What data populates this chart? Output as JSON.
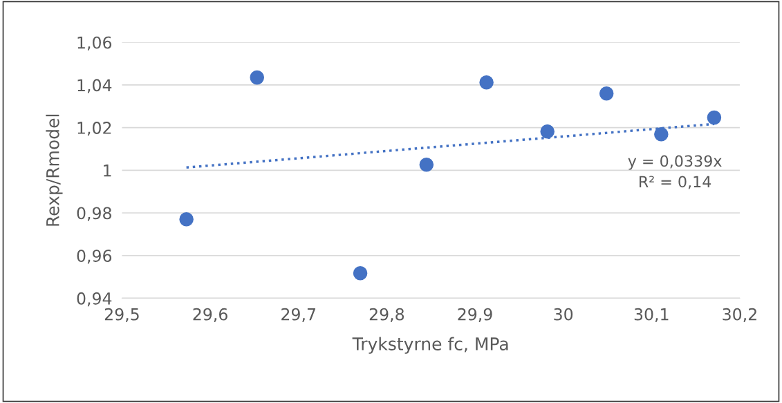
{
  "chart_data": {
    "type": "scatter",
    "xlabel": "Trykstyrne fc, MPa",
    "ylabel": "Rexp/Rmodel",
    "series": [
      {
        "color": "#4472c4",
        "marker": "circle",
        "x": [
          29.573,
          29.653,
          29.77,
          29.845,
          29.913,
          29.982,
          30.049,
          30.111,
          30.171
        ],
        "values": [
          0.977,
          1.0435,
          0.9517,
          1.0026,
          1.0412,
          1.0182,
          1.036,
          1.0169,
          1.0247
        ]
      },
      {
        "type": "line",
        "color": "#4472c4",
        "line_style": "dotted",
        "marker": "none",
        "x": [
          29.573,
          30.171
        ],
        "values": [
          1.0013,
          1.0217
        ]
      }
    ],
    "xlim": [
      29.5,
      30.2
    ],
    "xticks": [
      {
        "value": 29.5,
        "label": "29,5"
      },
      {
        "value": 29.6,
        "label": "29,6"
      },
      {
        "value": 29.7,
        "label": "29,7"
      },
      {
        "value": 29.8,
        "label": "29,8"
      },
      {
        "value": 29.9,
        "label": "29,9"
      },
      {
        "value": 30,
        "label": "30"
      },
      {
        "value": 30.1,
        "label": "30,1"
      },
      {
        "value": 30.2,
        "label": "30,2"
      }
    ],
    "ylim": [
      0.94,
      1.06
    ],
    "yticks": [
      {
        "value": 0.94,
        "label": "0,94"
      },
      {
        "value": 0.96,
        "label": "0,96"
      },
      {
        "value": 0.98,
        "label": "0,98"
      },
      {
        "value": 1,
        "label": "1"
      },
      {
        "value": 1.02,
        "label": "1,02"
      },
      {
        "value": 1.04,
        "label": "1,04"
      },
      {
        "value": 1.06,
        "label": "1,06"
      }
    ],
    "grid": "y",
    "legend": false,
    "annotations": [
      "y = 0,0339x\nR² = 0,14"
    ]
  }
}
